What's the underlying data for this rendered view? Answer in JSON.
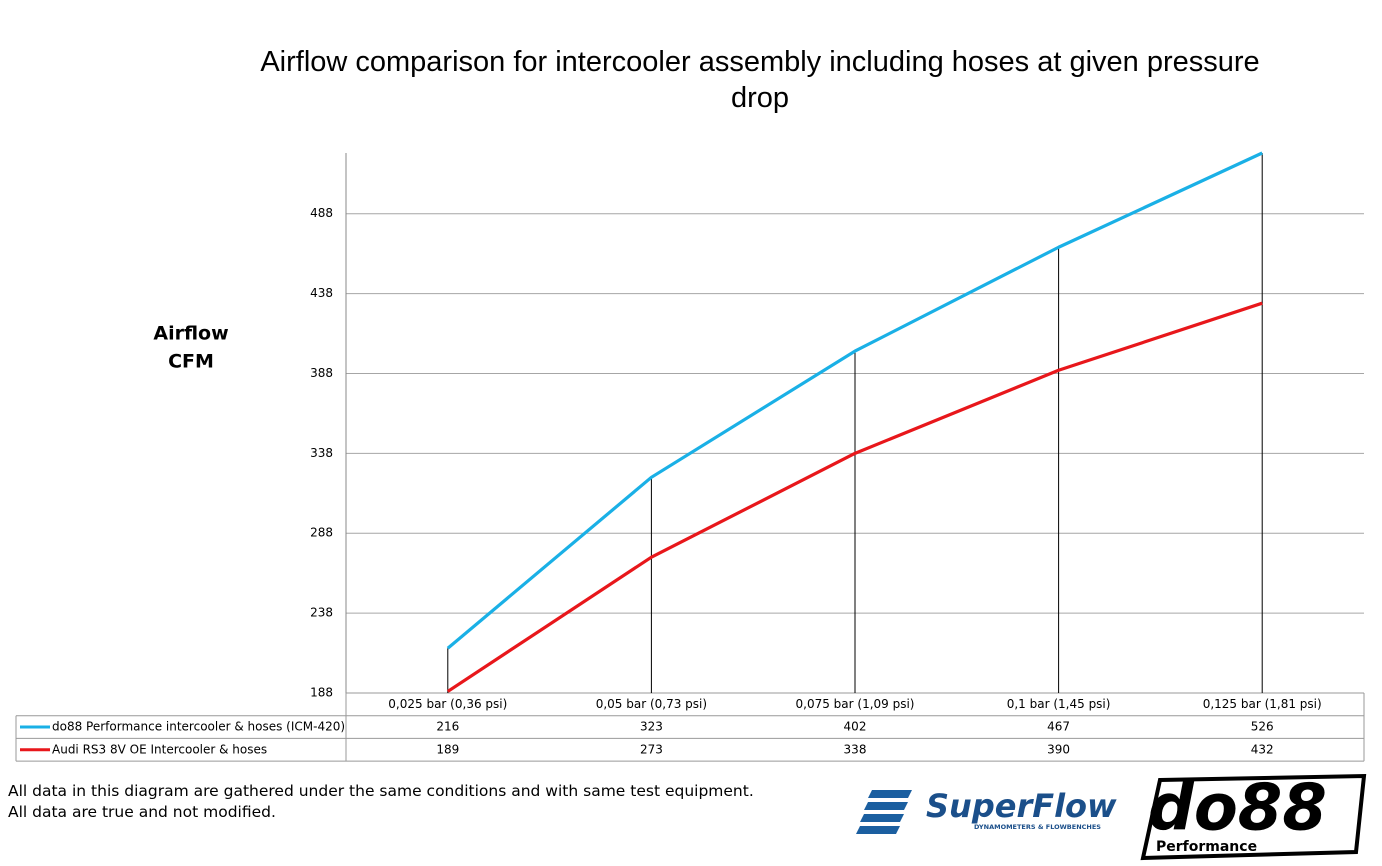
{
  "chart_data": {
    "type": "line",
    "title": "Airflow comparison for intercooler assembly including hoses at given pressure drop",
    "ylabel": [
      "Airflow",
      "CFM"
    ],
    "categories": [
      "0,025 bar (0,36 psi)",
      "0,05 bar (0,73 psi)",
      "0,075 bar (1,09 psi)",
      "0,1 bar (1,45 psi)",
      "0,125 bar (1,81 psi)"
    ],
    "series": [
      {
        "name": "do88 Performance intercooler & hoses (ICM-420)",
        "color": "#1ab0e6",
        "values": [
          216,
          323,
          402,
          467,
          526
        ]
      },
      {
        "name": "Audi RS3 8V OE Intercooler & hoses",
        "color": "#e8171b",
        "values": [
          189,
          273,
          338,
          390,
          432
        ]
      }
    ],
    "ylim": [
      188,
      526
    ],
    "yticks": [
      188,
      238,
      288,
      338,
      388,
      438,
      488
    ],
    "grid": true,
    "drop_lines": true,
    "data_table": true
  },
  "footnote": [
    "All data in this diagram are gathered under the same conditions and with same test equipment.",
    "All data are true and not modified."
  ],
  "logos": {
    "superflow": {
      "name": "SuperFlow",
      "tagline": "DYNAMOMETERS & FLOWBENCHES"
    },
    "do88": {
      "name": "do88",
      "tagline": "Performance"
    }
  }
}
